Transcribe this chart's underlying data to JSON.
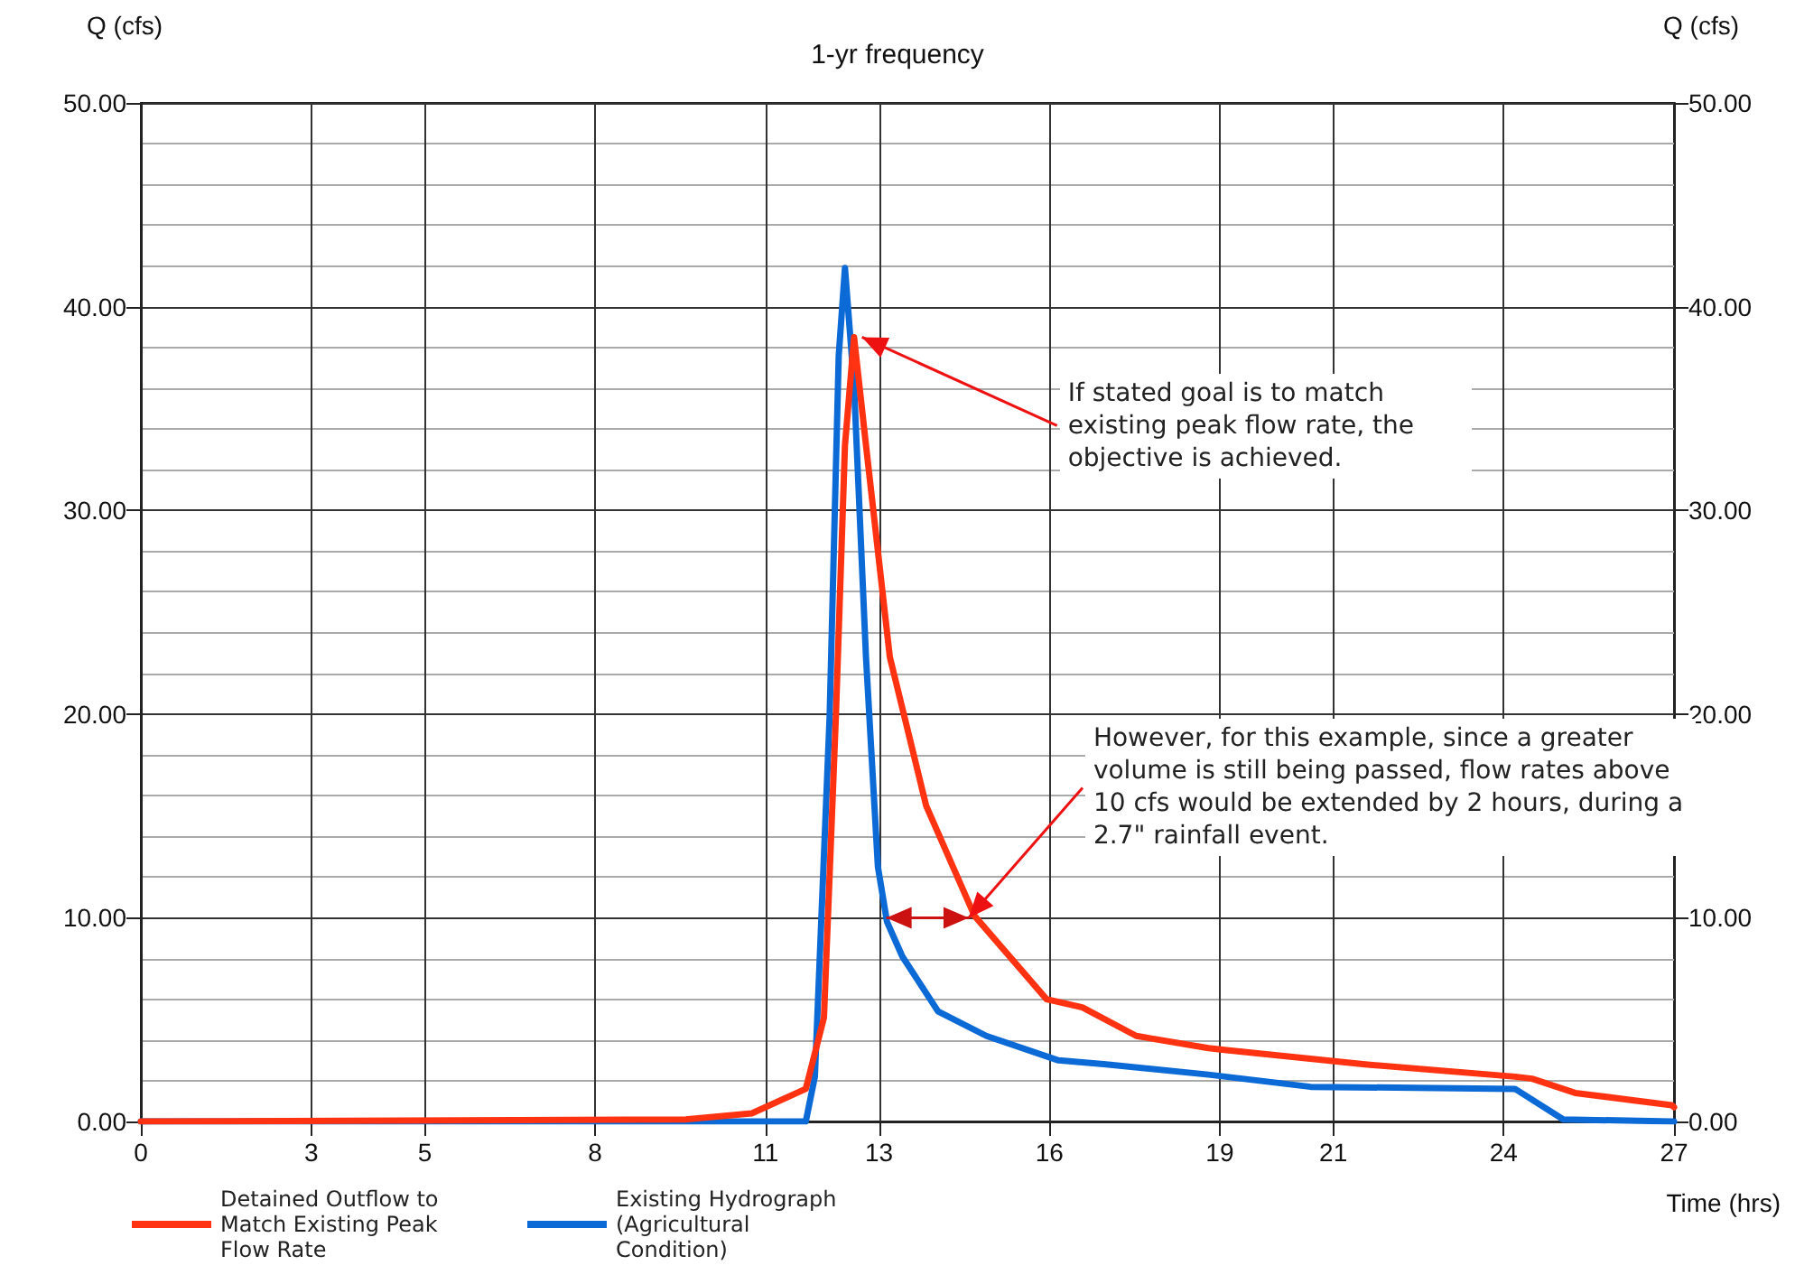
{
  "chart_data": {
    "type": "line",
    "title": "1-yr frequency",
    "xlabel": "Time (hrs)",
    "ylabel": "Q (cfs)",
    "y2label": "Q (cfs)",
    "xlim": [
      0,
      27
    ],
    "xticks": [
      0,
      3,
      5,
      8,
      11,
      13,
      16,
      19,
      21,
      24,
      27
    ],
    "ylim": [
      0,
      50
    ],
    "yticks": [
      {
        "value": 0,
        "label": "0.00"
      },
      {
        "value": 10,
        "label": "10.00"
      },
      {
        "value": 20,
        "label": "20.00"
      },
      {
        "value": 30,
        "label": "30.00"
      },
      {
        "value": 40,
        "label": "40.00"
      },
      {
        "value": 50,
        "label": "50.00"
      }
    ],
    "y2lim": [
      0,
      50
    ],
    "y2ticks": [
      {
        "value": 0,
        "label": "0.00"
      },
      {
        "value": 10,
        "label": "10.00"
      },
      {
        "value": 20,
        "label": "20.00"
      },
      {
        "value": 30,
        "label": "30.00"
      },
      {
        "value": 40,
        "label": "40.00"
      },
      {
        "value": 50,
        "label": "50.00"
      }
    ],
    "grid": true,
    "legend": "bottom left",
    "marker": "none",
    "line_style": "solid",
    "series": [
      {
        "name": "Detained Outflow to Match Existing Peak Flow Rate",
        "color": "#ff3311",
        "x": [
          0,
          9.6,
          10.76,
          11.71,
          12.03,
          12.24,
          12.4,
          12.56,
          12.77,
          13.19,
          13.83,
          14.68,
          15.95,
          16.58,
          17.53,
          18.8,
          19.12,
          21.56,
          24.2,
          24.5,
          25.26,
          26.96,
          27
        ],
        "values": [
          0,
          0.1,
          0.4,
          1.6,
          5.1,
          19.9,
          33.2,
          38.5,
          33.2,
          22.8,
          15.5,
          10.1,
          6.0,
          5.6,
          4.2,
          3.6,
          3.5,
          2.8,
          2.2,
          2.1,
          1.4,
          0.8,
          0.7
        ]
      },
      {
        "name": "Existing Hydrograph (Agricultural Condition)",
        "color": "#0b6ad6",
        "x": [
          0,
          11.71,
          11.87,
          12.13,
          12.29,
          12.4,
          12.56,
          12.77,
          12.98,
          13.14,
          13.41,
          14.04,
          14.89,
          16.16,
          17.0,
          18.8,
          20.6,
          24.2,
          25.05,
          26.96,
          27
        ],
        "values": [
          0,
          0,
          2.2,
          19.9,
          37.6,
          41.9,
          36.1,
          22.8,
          12.5,
          9.8,
          8.1,
          5.4,
          4.2,
          3.0,
          2.8,
          2.3,
          1.7,
          1.6,
          0.1,
          0,
          0
        ]
      }
    ],
    "annotations": [
      {
        "text": "If stated goal is to match existing peak flow rate, the objective is achieved.",
        "x": 12.7,
        "y": 38.5
      },
      {
        "text": "However, for this example, since a greater volume is still being passed, flow rates above 10 cfs would be extended by 2 hours, during a 2.7\" rainfall event.",
        "x": 14.58,
        "y": 10
      }
    ]
  }
}
